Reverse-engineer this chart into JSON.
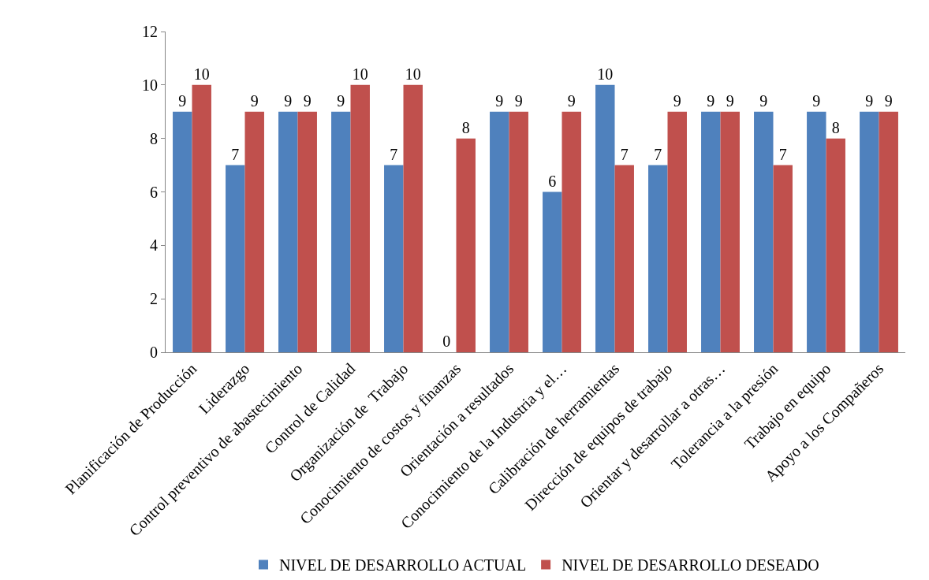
{
  "chart_data": {
    "type": "bar",
    "categories": [
      "Planificación de Producción",
      "Liderazgo",
      "Control preventivo de abastecimiento",
      "Control de Calidad",
      "Organización de  Trabajo",
      "Conocimiento de costos y finanzas",
      "Orientación a resultados",
      "Conocimiento de la Industria y el…",
      "Calibración de herramientas",
      "Dirección de equipos de trabajo",
      "Orientar y desarrollar a otras…",
      "Tolerancia a la presión",
      "Trabajo en equipo",
      "Apoyo a los Compañeros"
    ],
    "series": [
      {
        "name": "NIVEL DE DESARROLLO ACTUAL",
        "color": "#4f81bd",
        "values": [
          9,
          7,
          9,
          9,
          7,
          0,
          9,
          6,
          10,
          7,
          9,
          9,
          9,
          9
        ]
      },
      {
        "name": "NIVEL DE DESARROLLO DESEADO",
        "color": "#c0504d",
        "values": [
          10,
          9,
          9,
          10,
          10,
          8,
          9,
          9,
          7,
          9,
          9,
          7,
          8,
          9
        ]
      }
    ],
    "ylim": [
      0,
      12
    ],
    "yticks": [
      0,
      2,
      4,
      6,
      8,
      10,
      12
    ],
    "grid": false,
    "legend": "bottom",
    "data_labels": true
  }
}
